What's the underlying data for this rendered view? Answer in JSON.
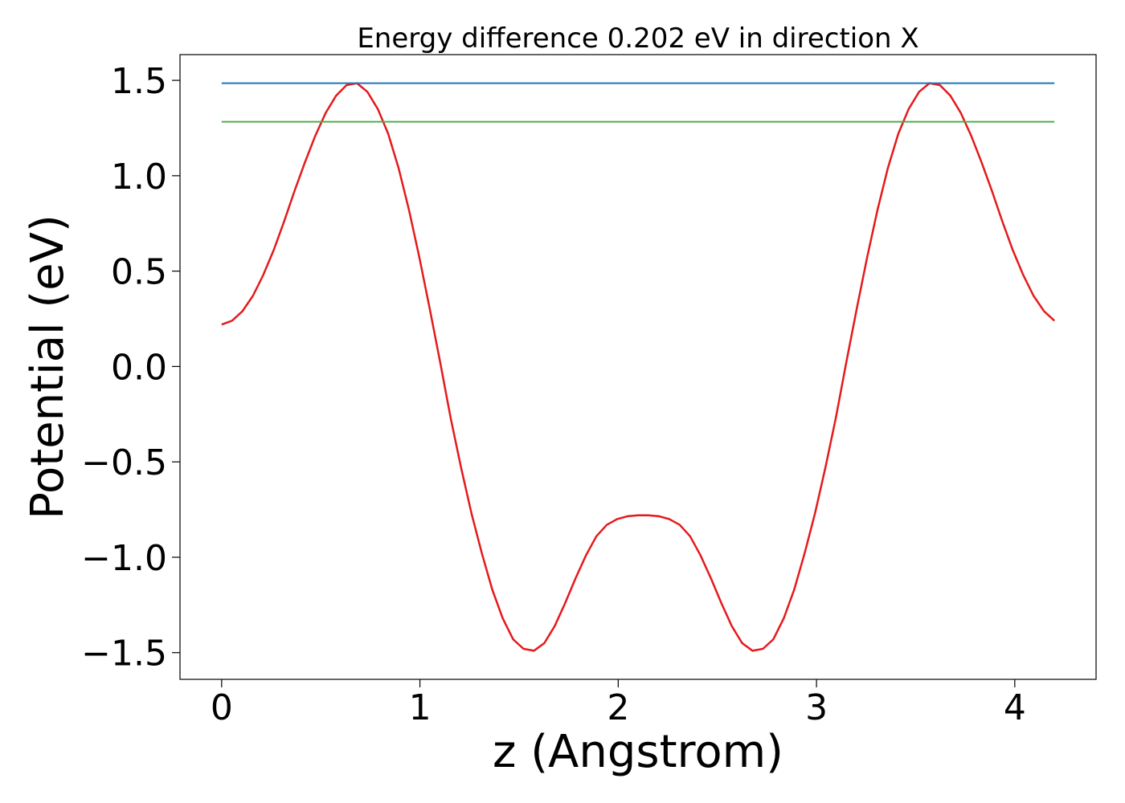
{
  "chart_data": {
    "type": "line",
    "title": "Energy difference 0.202 eV in direction X",
    "x_label": "z (Angstrom)",
    "y_label": "Potential (eV)",
    "xlim": [
      -0.21,
      4.41
    ],
    "ylim": [
      -1.64,
      1.635
    ],
    "xticks": [
      0,
      1,
      2,
      3,
      4
    ],
    "yticks": [
      {
        "value": -1.5,
        "label": "−1.5"
      },
      {
        "value": -1.0,
        "label": "−1.0"
      },
      {
        "value": -0.5,
        "label": "−0.5"
      },
      {
        "value": 0,
        "label": "0.0"
      },
      0.5,
      {
        "value": 1.0,
        "label": "1.0"
      },
      1.5
    ],
    "grid": false,
    "series": [
      {
        "color": "#e41a1c",
        "x": [
          0,
          0.0525,
          0.105,
          0.1575,
          0.21,
          0.2625,
          0.315,
          0.3675,
          0.42,
          0.4725,
          0.525,
          0.5775,
          0.63,
          0.6825,
          0.735,
          0.7875,
          0.84,
          0.8925,
          0.945,
          0.9975,
          1.05,
          1.1025,
          1.155,
          1.2075,
          1.26,
          1.3125,
          1.365,
          1.4175,
          1.47,
          1.5225,
          1.575,
          1.6275,
          1.68,
          1.7325,
          1.785,
          1.8375,
          1.89,
          1.9425,
          1.995,
          2.0475,
          2.1,
          2.1525,
          2.205,
          2.2575,
          2.31,
          2.3625,
          2.415,
          2.4675,
          2.52,
          2.5725,
          2.625,
          2.6775,
          2.73,
          2.7825,
          2.835,
          2.8875,
          2.94,
          2.9925,
          3.045,
          3.0975,
          3.15,
          3.2025,
          3.255,
          3.3075,
          3.36,
          3.4125,
          3.465,
          3.5175,
          3.57,
          3.6225,
          3.675,
          3.7275,
          3.78,
          3.8325,
          3.885,
          3.9375,
          3.99,
          4.0425,
          4.095,
          4.1475,
          4.2
        ],
        "values": [
          0.22,
          0.24,
          0.29,
          0.37,
          0.48,
          0.61,
          0.76,
          0.92,
          1.07,
          1.21,
          1.33,
          1.42,
          1.475,
          1.485,
          1.44,
          1.35,
          1.22,
          1.04,
          0.82,
          0.57,
          0.3,
          0.02,
          -0.27,
          -0.53,
          -0.77,
          -0.98,
          -1.17,
          -1.32,
          -1.43,
          -1.48,
          -1.49,
          -1.45,
          -1.36,
          -1.24,
          -1.11,
          -0.99,
          -0.89,
          -0.83,
          -0.8,
          -0.785,
          -0.78,
          -0.78,
          -0.785,
          -0.8,
          -0.83,
          -0.89,
          -0.99,
          -1.11,
          -1.24,
          -1.36,
          -1.45,
          -1.49,
          -1.48,
          -1.43,
          -1.32,
          -1.17,
          -0.98,
          -0.77,
          -0.53,
          -0.27,
          0.02,
          0.3,
          0.57,
          0.82,
          1.04,
          1.22,
          1.35,
          1.44,
          1.485,
          1.475,
          1.42,
          1.33,
          1.21,
          1.07,
          0.92,
          0.76,
          0.61,
          0.48,
          0.37,
          0.29,
          0.24
        ]
      },
      {
        "color": "#1f77b4",
        "x": [
          0,
          4.2
        ],
        "values": [
          1.485,
          1.485
        ]
      },
      {
        "color": "#4daf4a",
        "x": [
          0,
          4.2
        ],
        "values": [
          1.283,
          1.283
        ]
      }
    ]
  }
}
